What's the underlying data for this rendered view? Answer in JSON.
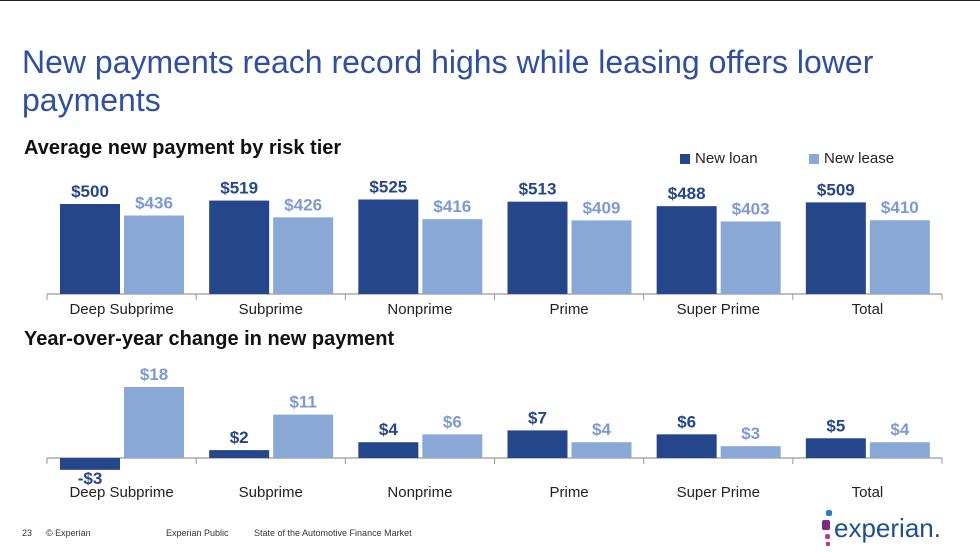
{
  "title": "New payments reach record highs while leasing offers lower payments",
  "colors": {
    "loan": "#25468a",
    "lease": "#8aa8d6",
    "title": "#2f4fa0"
  },
  "legend": {
    "loan": "New loan",
    "lease": "New lease"
  },
  "chart_data": [
    {
      "type": "bar",
      "title": "Average new payment by risk tier",
      "categories": [
        "Deep Subprime",
        "Subprime",
        "Nonprime",
        "Prime",
        "Super Prime",
        "Total"
      ],
      "series": [
        {
          "name": "New loan",
          "values": [
            500,
            519,
            525,
            513,
            488,
            509
          ],
          "labels": [
            "$500",
            "$519",
            "$525",
            "$513",
            "$488",
            "$509"
          ]
        },
        {
          "name": "New lease",
          "values": [
            436,
            426,
            416,
            409,
            403,
            410
          ],
          "labels": [
            "$436",
            "$426",
            "$416",
            "$409",
            "$403",
            "$410"
          ]
        }
      ],
      "ylim": [
        0,
        560
      ],
      "legend": "top-right"
    },
    {
      "type": "bar",
      "title": "Year-over-year change in new payment",
      "categories": [
        "Deep Subprime",
        "Subprime",
        "Nonprime",
        "Prime",
        "Super Prime",
        "Total"
      ],
      "series": [
        {
          "name": "New loan",
          "values": [
            -3,
            2,
            4,
            7,
            6,
            5
          ],
          "labels": [
            "-$3",
            "$2",
            "$4",
            "$7",
            "$6",
            "$5"
          ]
        },
        {
          "name": "New lease",
          "values": [
            18,
            11,
            6,
            4,
            3,
            4
          ],
          "labels": [
            "$18",
            "$11",
            "$6",
            "$4",
            "$3",
            "$4"
          ]
        }
      ],
      "ylim": [
        -4,
        20
      ]
    }
  ],
  "footer": {
    "page": "23",
    "copyright": "© Experian",
    "classification": "Experian Public",
    "deck": "State of the Automotive Finance Market"
  },
  "logo": {
    "text": "experian."
  }
}
